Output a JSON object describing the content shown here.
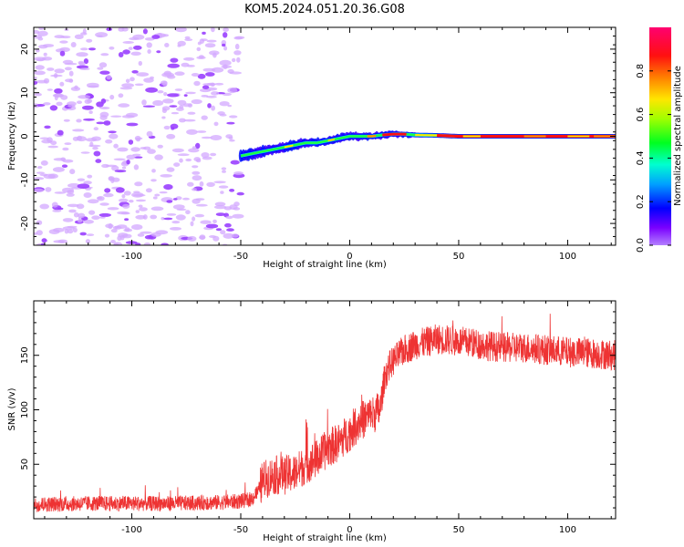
{
  "figure": {
    "title": "KOM5.2024.051.20.36.G08"
  },
  "chart_data": [
    {
      "type": "heatmap",
      "xlabel": "Height of straight line (km)",
      "ylabel": "Frequency (Hz)",
      "xlim": [
        -145,
        122
      ],
      "ylim": [
        -25,
        25
      ],
      "xticks": [
        -100,
        -50,
        0,
        50,
        100
      ],
      "yticks": [
        -20,
        -10,
        0,
        10,
        20
      ],
      "ridge": {
        "x": [
          -50,
          -45,
          -40,
          -35,
          -30,
          -25,
          -20,
          -15,
          -10,
          -5,
          0,
          5,
          10,
          15,
          20,
          25,
          30,
          40,
          50,
          60,
          80,
          100,
          122
        ],
        "y": [
          -4.5,
          -4,
          -3.5,
          -3,
          -2.5,
          -2,
          -1.5,
          -1.5,
          -1,
          -0.5,
          0,
          0,
          0,
          0.3,
          0.5,
          0.5,
          0.3,
          0.2,
          0,
          0,
          0,
          0,
          0
        ]
      },
      "colorbar": {
        "label": "Normalized spectral amplitude",
        "range": [
          0,
          1
        ],
        "ticks": [
          0.0,
          0.2,
          0.4,
          0.6,
          0.8
        ],
        "tick_labels": [
          "0.0",
          "0.2",
          "0.4",
          "0.6",
          "0.8"
        ],
        "colormap": "gist_rainbow"
      }
    },
    {
      "type": "line",
      "xlabel": "Height of straight line (km)",
      "ylabel": "SNR (v/v)",
      "xlim": [
        -145,
        122
      ],
      "ylim": [
        0,
        200
      ],
      "xticks": [
        -100,
        -50,
        0,
        50,
        100
      ],
      "yticks": [
        50,
        100,
        150
      ],
      "color": "#ee3333",
      "series": [
        {
          "x": [
            -145,
            -120,
            -100,
            -80,
            -60,
            -50,
            -45,
            -42,
            -40,
            -35,
            -30,
            -25,
            -20,
            -15,
            -10,
            -5,
            0,
            5,
            10,
            14,
            16,
            18,
            20,
            25,
            30,
            35,
            40,
            50,
            60,
            70,
            80,
            90,
            100,
            110,
            122
          ],
          "y": [
            13,
            14,
            14,
            14,
            15,
            16,
            18,
            25,
            35,
            40,
            40,
            42,
            50,
            55,
            65,
            70,
            80,
            90,
            95,
            100,
            130,
            140,
            145,
            155,
            160,
            162,
            165,
            163,
            160,
            157,
            157,
            155,
            153,
            152,
            150
          ]
        }
      ]
    }
  ]
}
